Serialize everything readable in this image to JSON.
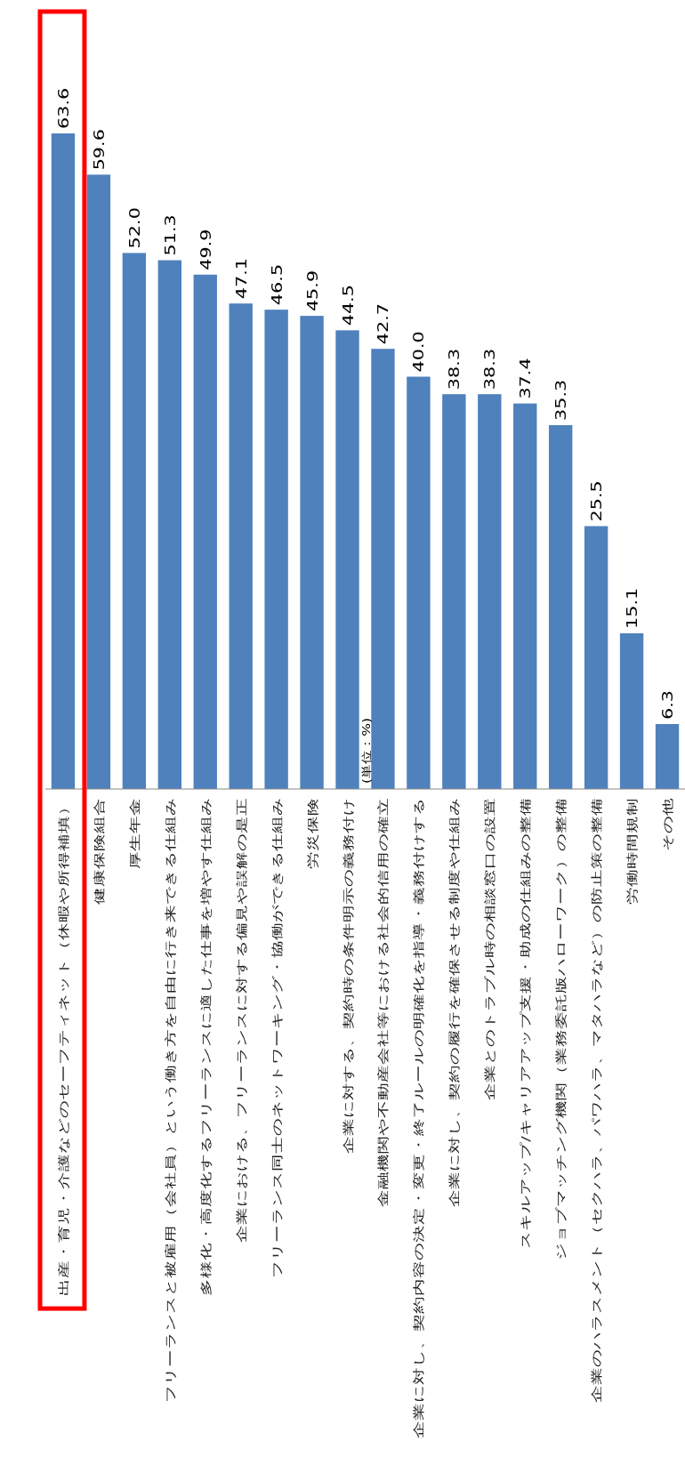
{
  "chart_data": {
    "type": "bar",
    "subtitle": "(単位：%)",
    "categories": [
      "出産・育児・介護などのセーフティネット（休暇や所得補填）",
      "健康保険組合",
      "厚生年金",
      "フリーランスと被雇用（会社員）という働き方を自由に行き来できる仕組み",
      "多様化・高度化するフリーランスに適した仕事を増やす仕組み",
      "企業における、フリーランスに対する偏見や誤解の是正",
      "フリーランス同士のネットワーキング・協働ができる仕組み",
      "労災保険",
      "企業に対する、契約時の条件明示の義務付け",
      "金融機関や不動産会社等における社会的信用の確立",
      "企業に対し、契約内容の決定・変更・終了ルールの明確化を指導・義務付けする",
      "企業に対し、契約の履行を確保させる制度や仕組み",
      "企業とのトラブル時の相談窓口の設置",
      "スキルアップ/キャリアアップ支援・助成の仕組みの整備",
      "ジョブマッチング機関（業務委託版ハローワーク）の整備",
      "企業のハラスメント（セクハラ、パワハラ、マタハラなど）の防止策の整備",
      "労働時間規制",
      "その他"
    ],
    "values": [
      63.6,
      59.6,
      52.0,
      51.3,
      49.9,
      47.1,
      46.5,
      45.9,
      44.5,
      42.7,
      40.0,
      38.3,
      38.3,
      37.4,
      35.3,
      25.5,
      15.1,
      6.3
    ],
    "value_labels": [
      "63.6",
      "59.6",
      "52.0",
      "51.3",
      "49.9",
      "47.1",
      "46.5",
      "45.9",
      "44.5",
      "42.7",
      "40.0",
      "38.3",
      "38.3",
      "37.4",
      "35.3",
      "25.5",
      "15.1",
      "6.3"
    ],
    "color": "#4f81bd"
  }
}
